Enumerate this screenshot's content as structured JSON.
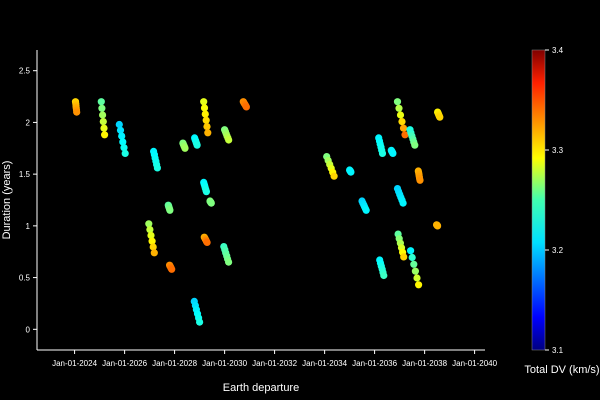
{
  "chart_data": {
    "type": "scatter",
    "xlabel": "Earth departure",
    "ylabel": "Duration (years)",
    "colorbar_label": "Total DV (km/s)",
    "colorscale": "jet",
    "xlim": [
      "2022-07-01",
      "2040-06-01"
    ],
    "ylim": [
      -0.2,
      2.7
    ],
    "x_ticks": [
      "2024-01-01",
      "2026-01-01",
      "2028-01-01",
      "2030-01-01",
      "2032-01-01",
      "2034-01-01",
      "2036-01-01",
      "2038-01-01",
      "2040-01-01"
    ],
    "x_tick_labels": [
      "Jan-01-2024",
      "Jan-01-2026",
      "Jan-01-2028",
      "Jan-01-2030",
      "Jan-01-2032",
      "Jan-01-2034",
      "Jan-01-2036",
      "Jan-01-2038",
      "Jan-01-2040"
    ],
    "y_ticks": [
      0,
      0.5,
      1,
      1.5,
      2,
      2.5
    ],
    "y_tick_labels": [
      "0",
      "0.5",
      "1",
      "1.5",
      "2",
      "2.5"
    ],
    "cmin": 3.1,
    "cmax": 3.4,
    "colorbar_ticks": [
      3.1,
      3.2,
      3.3,
      3.4
    ],
    "colorbar_tick_labels": [
      "3.1",
      "3.2",
      "3.3",
      "3.4"
    ],
    "clusters": [
      {
        "x0": "2024-01-15",
        "x1": "2024-02-01",
        "y0": 2.2,
        "y1": 2.1,
        "c": [
          3.3,
          3.32
        ]
      },
      {
        "x0": "2025-01-25",
        "x1": "2025-03-15",
        "y0": 2.2,
        "y1": 1.88,
        "c": [
          3.24,
          3.29
        ]
      },
      {
        "x0": "2025-10-15",
        "x1": "2026-01-10",
        "y0": 1.98,
        "y1": 1.7,
        "c": [
          3.2,
          3.22
        ]
      },
      {
        "x0": "2027-03-01",
        "x1": "2027-04-25",
        "y0": 1.72,
        "y1": 1.56,
        "c": [
          3.21,
          3.22
        ]
      },
      {
        "x0": "2026-12-20",
        "x1": "2027-03-10",
        "y0": 1.02,
        "y1": 0.74,
        "c": [
          3.26,
          3.31
        ]
      },
      {
        "x0": "2027-10-01",
        "x1": "2027-10-25",
        "y0": 1.2,
        "y1": 1.15,
        "c": [
          3.24,
          3.25
        ]
      },
      {
        "x0": "2027-10-20",
        "x1": "2027-11-20",
        "y0": 0.62,
        "y1": 0.58,
        "c": [
          3.32,
          3.33
        ]
      },
      {
        "x0": "2028-05-01",
        "x1": "2028-06-01",
        "y0": 1.8,
        "y1": 1.75,
        "c": [
          3.25,
          3.26
        ]
      },
      {
        "x0": "2028-10-20",
        "x1": "2028-11-25",
        "y0": 1.85,
        "y1": 1.78,
        "c": [
          3.21,
          3.22
        ]
      },
      {
        "x0": "2028-10-15",
        "x1": "2029-01-01",
        "y0": 0.27,
        "y1": 0.07,
        "c": [
          3.2,
          3.22
        ]
      },
      {
        "x0": "2029-03-01",
        "x1": "2029-05-01",
        "y0": 2.2,
        "y1": 1.9,
        "c": [
          3.28,
          3.31
        ]
      },
      {
        "x0": "2029-03-01",
        "x1": "2029-04-10",
        "y0": 1.42,
        "y1": 1.33,
        "c": [
          3.21,
          3.22
        ]
      },
      {
        "x0": "2029-06-01",
        "x1": "2029-06-20",
        "y0": 1.24,
        "y1": 1.22,
        "c": [
          3.25,
          3.25
        ]
      },
      {
        "x0": "2029-03-10",
        "x1": "2029-04-20",
        "y0": 0.89,
        "y1": 0.84,
        "c": [
          3.31,
          3.33
        ]
      },
      {
        "x0": "2030-01-01",
        "x1": "2030-03-01",
        "y0": 1.93,
        "y1": 1.83,
        "c": [
          3.25,
          3.27
        ]
      },
      {
        "x0": "2029-12-20",
        "x1": "2030-02-28",
        "y0": 0.8,
        "y1": 0.65,
        "c": [
          3.23,
          3.25
        ]
      },
      {
        "x0": "2030-10-01",
        "x1": "2030-11-15",
        "y0": 2.2,
        "y1": 2.15,
        "c": [
          3.32,
          3.33
        ]
      },
      {
        "x0": "2034-02-01",
        "x1": "2034-05-20",
        "y0": 1.67,
        "y1": 1.48,
        "c": [
          3.25,
          3.3
        ]
      },
      {
        "x0": "2035-01-01",
        "x1": "2035-01-20",
        "y0": 1.54,
        "y1": 1.52,
        "c": [
          3.21,
          3.21
        ]
      },
      {
        "x0": "2035-07-01",
        "x1": "2035-09-01",
        "y0": 1.24,
        "y1": 1.15,
        "c": [
          3.2,
          3.21
        ]
      },
      {
        "x0": "2036-03-01",
        "x1": "2036-04-25",
        "y0": 1.85,
        "y1": 1.7,
        "c": [
          3.21,
          3.22
        ]
      },
      {
        "x0": "2036-03-15",
        "x1": "2036-05-15",
        "y0": 0.67,
        "y1": 0.52,
        "c": [
          3.21,
          3.23
        ]
      },
      {
        "x0": "2036-09-01",
        "x1": "2036-09-25",
        "y0": 1.73,
        "y1": 1.7,
        "c": [
          3.21,
          3.21
        ]
      },
      {
        "x0": "2036-12-01",
        "x1": "2037-03-20",
        "y0": 2.2,
        "y1": 1.88,
        "c": [
          3.25,
          3.33
        ]
      },
      {
        "x0": "2036-12-01",
        "x1": "2037-02-20",
        "y0": 1.36,
        "y1": 1.22,
        "c": [
          3.2,
          3.21
        ]
      },
      {
        "x0": "2036-12-10",
        "x1": "2037-03-01",
        "y0": 0.92,
        "y1": 0.7,
        "c": [
          3.24,
          3.3
        ]
      },
      {
        "x0": "2037-06-01",
        "x1": "2037-08-10",
        "y0": 1.93,
        "y1": 1.78,
        "c": [
          3.22,
          3.25
        ]
      },
      {
        "x0": "2037-06-10",
        "x1": "2037-10-05",
        "y0": 0.76,
        "y1": 0.43,
        "c": [
          3.21,
          3.29
        ]
      },
      {
        "x0": "2037-10-01",
        "x1": "2037-10-25",
        "y0": 1.53,
        "y1": 1.44,
        "c": [
          3.31,
          3.32
        ]
      },
      {
        "x0": "2038-07-10",
        "x1": "2038-08-10",
        "y0": 2.1,
        "y1": 2.05,
        "c": [
          3.29,
          3.3
        ]
      },
      {
        "x0": "2038-06-25",
        "x1": "2038-07-10",
        "y0": 1.01,
        "y1": 1.0,
        "c": [
          3.31,
          3.31
        ]
      }
    ]
  }
}
